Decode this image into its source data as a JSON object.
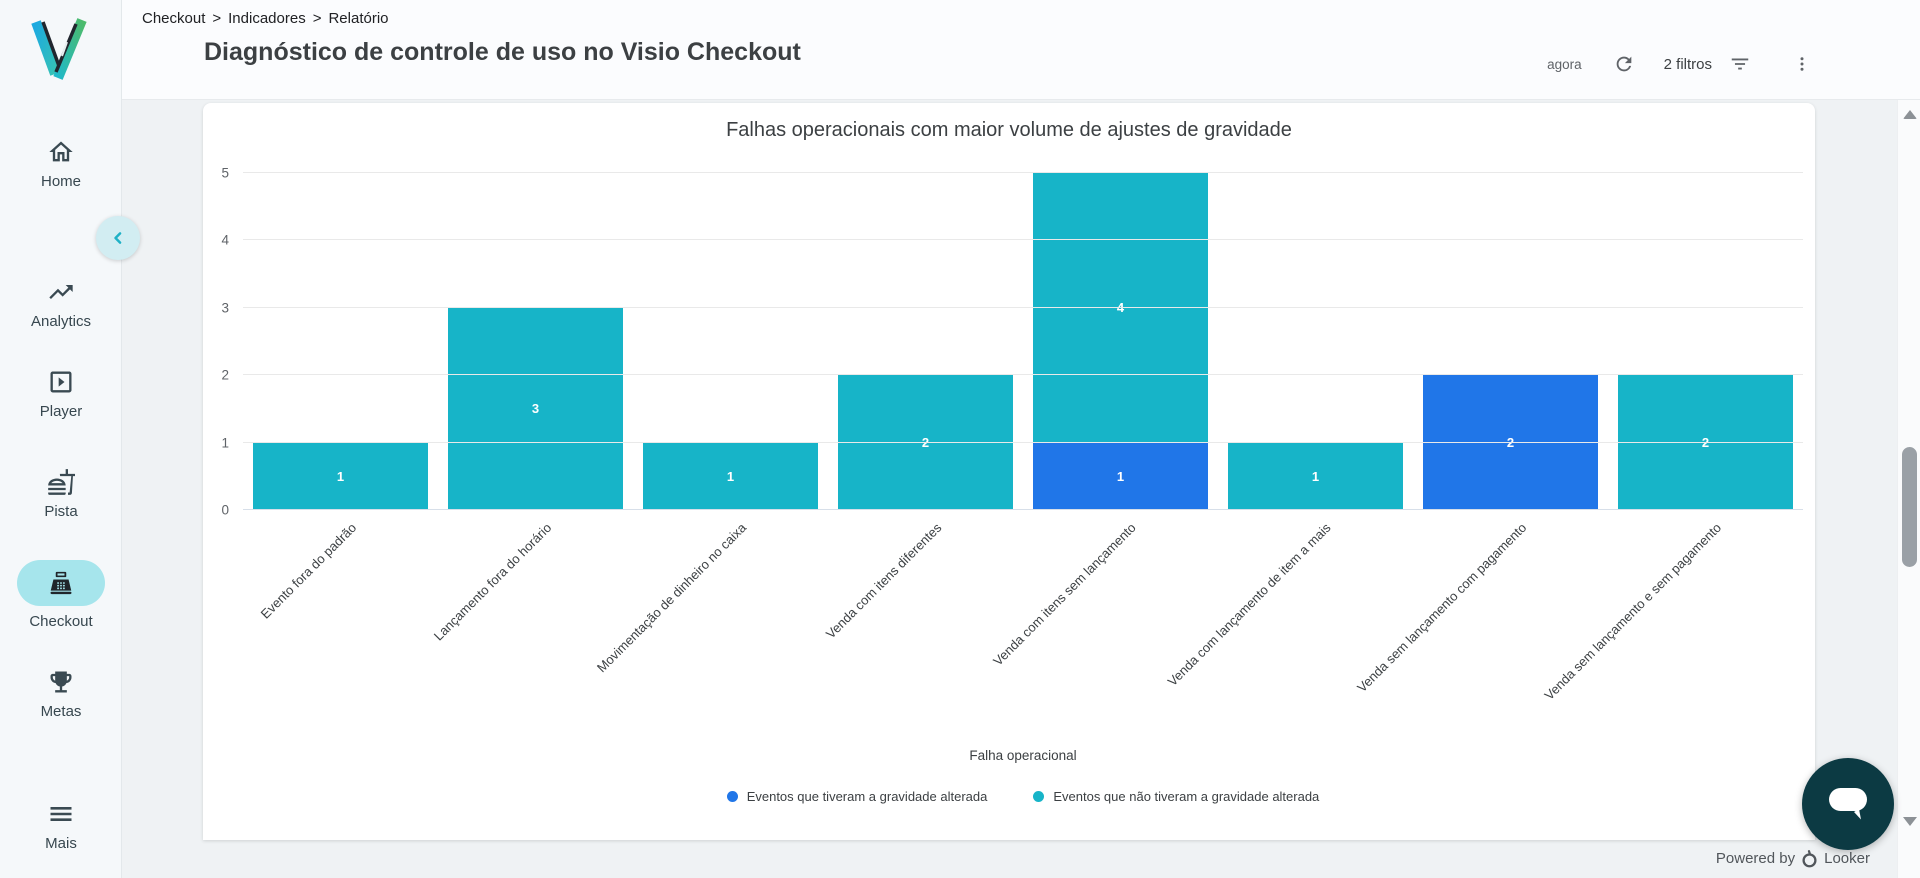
{
  "sidebar": {
    "logo_name": "visio-logo",
    "items": [
      {
        "label": "Home",
        "icon": "home-icon",
        "active": false
      },
      {
        "label": "Analytics",
        "icon": "trending-up-icon",
        "active": false
      },
      {
        "label": "Player",
        "icon": "slideshow-play-icon",
        "active": false
      },
      {
        "label": "Pista",
        "icon": "fastfood-icon",
        "active": false
      },
      {
        "label": "Checkout",
        "icon": "cash-register-icon",
        "active": true
      },
      {
        "label": "Metas",
        "icon": "trophy-icon",
        "active": false
      },
      {
        "label": "Mais",
        "icon": "hamburger-menu-icon",
        "active": false
      }
    ],
    "collapse_icon": "chevron-left-icon"
  },
  "header": {
    "breadcrumb": [
      "Checkout",
      "Indicadores",
      "Relatório"
    ],
    "separator": ">",
    "title": "Diagnóstico de controle de uso no Visio Checkout",
    "updated_label": "agora",
    "filters_label": "2 filtros",
    "icons": [
      "refresh-icon",
      "filter-list-icon",
      "kebab-menu-icon"
    ]
  },
  "chart_data": {
    "type": "bar",
    "stacked": true,
    "title": "Falhas operacionais com maior volume de ajustes de gravidade",
    "xlabel": "Falha operacional",
    "ylabel": "",
    "ylim": [
      0,
      5
    ],
    "yticks": [
      0,
      1,
      2,
      3,
      4,
      5
    ],
    "grid": true,
    "legend_position": "bottom",
    "bar_label_color": "#FFFFFF",
    "categories": [
      "Evento fora do padrão",
      "Lançamento fora do horário",
      "Movimentação de dinheiro no caixa",
      "Venda com itens diferentes",
      "Venda com itens sem lançamento",
      "Venda com lançamento de item a mais",
      "Venda sem lançamento com pagamento",
      "Venda sem lançamento e sem pagamento"
    ],
    "series": [
      {
        "name": "Eventos que tiveram a gravidade alterada",
        "color": "#2076E8",
        "values": [
          0,
          0,
          0,
          0,
          1,
          0,
          2,
          0
        ]
      },
      {
        "name": "Eventos que não tiveram a gravidade alterada",
        "color": "#17B4C8",
        "values": [
          1,
          3,
          1,
          2,
          4,
          1,
          0,
          2
        ]
      }
    ]
  },
  "footer": {
    "powered_by": "Powered by",
    "brand": "Looker",
    "brand_icon": "looker-logo"
  },
  "misc": {
    "chat_icon": "chat-bubble-icon",
    "accent_teal": "#17B4C8",
    "accent_blue": "#2076E8",
    "active_pill": "#A6E5EC",
    "fab_color": "#0C3A43"
  }
}
